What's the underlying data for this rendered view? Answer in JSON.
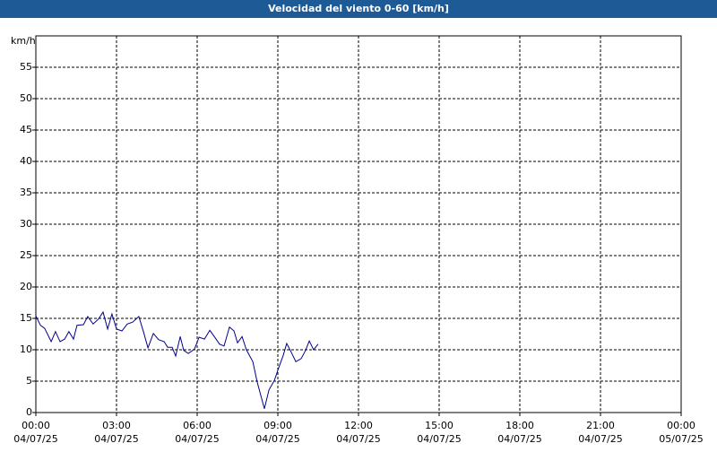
{
  "chart_data": {
    "type": "line",
    "title": "Velocidad del viento 0-60 [km/h]",
    "y_label": "km/h",
    "x": [
      0,
      0.17,
      0.33,
      0.57,
      0.73,
      0.9,
      1.07,
      1.23,
      1.4,
      1.53,
      1.77,
      1.93,
      2.13,
      2.33,
      2.5,
      2.67,
      2.83,
      3,
      3.2,
      3.4,
      3.6,
      3.83,
      4,
      4.17,
      4.37,
      4.57,
      4.77,
      4.9,
      5.07,
      5.2,
      5.37,
      5.5,
      5.67,
      5.9,
      6.07,
      6.27,
      6.47,
      6.67,
      6.83,
      7,
      7.2,
      7.37,
      7.5,
      7.67,
      7.83,
      8.07,
      8.23,
      8.5,
      8.67,
      8.87,
      9.03,
      9.2,
      9.33,
      9.5,
      9.67,
      9.87,
      10.03,
      10.17,
      10.33,
      10.5
    ],
    "series": [
      {
        "name": "Velocidad del viento",
        "color": "#00008b",
        "values": [
          15.4,
          13.9,
          13.4,
          11.3,
          12.9,
          11.3,
          11.7,
          12.9,
          11.7,
          13.9,
          14,
          15.3,
          14.1,
          14.9,
          16,
          13.3,
          15.7,
          13.3,
          13,
          14.1,
          14.4,
          15.3,
          12.9,
          10.3,
          12.6,
          11.6,
          11.3,
          10.4,
          10.4,
          9,
          12.1,
          9.9,
          9.4,
          10.1,
          12,
          11.7,
          13.1,
          11.9,
          10.9,
          10.6,
          13.6,
          13,
          11.1,
          12.1,
          10,
          8.1,
          4.9,
          0.6,
          3.6,
          5.1,
          7.1,
          9.1,
          11,
          9.6,
          8.1,
          8.6,
          9.9,
          11.4,
          10,
          10.9
        ]
      }
    ],
    "xlim": [
      0,
      24
    ],
    "xticks": [
      {
        "value": 0,
        "label": "00:00"
      },
      {
        "value": 3,
        "label": "03:00"
      },
      {
        "value": 6,
        "label": "06:00"
      },
      {
        "value": 9,
        "label": "09:00"
      },
      {
        "value": 12,
        "label": "12:00"
      },
      {
        "value": 15,
        "label": "15:00"
      },
      {
        "value": 18,
        "label": "18:00"
      },
      {
        "value": 21,
        "label": "21:00"
      },
      {
        "value": 24,
        "label": "00:00"
      }
    ],
    "xtick_dates": [
      "04/07/25",
      "04/07/25",
      "04/07/25",
      "04/07/25",
      "04/07/25",
      "04/07/25",
      "04/07/25",
      "04/07/25",
      "05/07/25"
    ],
    "ylim": [
      0,
      60
    ],
    "yticks": [
      0,
      5,
      10,
      15,
      20,
      25,
      30,
      35,
      40,
      45,
      50,
      55
    ],
    "grid": true
  }
}
